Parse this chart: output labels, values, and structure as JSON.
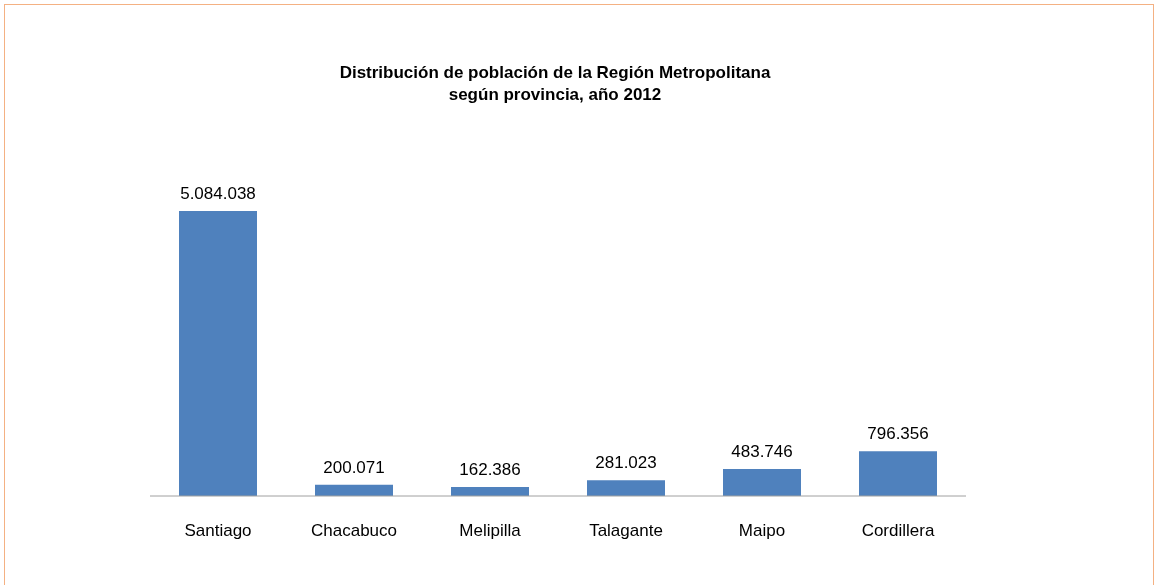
{
  "chart_data": {
    "type": "bar",
    "title": "Distribución de población de la Región Metropolitana\nsegún provincia, año 2012",
    "categories": [
      "Santiago",
      "Chacabuco",
      "Melipilla",
      "Talagante",
      "Maipo",
      "Cordillera"
    ],
    "values": [
      5084038,
      200071,
      162386,
      281023,
      483746,
      796356
    ],
    "value_labels": [
      "5.084.038",
      "200.071",
      "162.386",
      "281.023",
      "483.746",
      "796.356"
    ],
    "color": "#4f81bd",
    "grid": false,
    "legend": false
  }
}
